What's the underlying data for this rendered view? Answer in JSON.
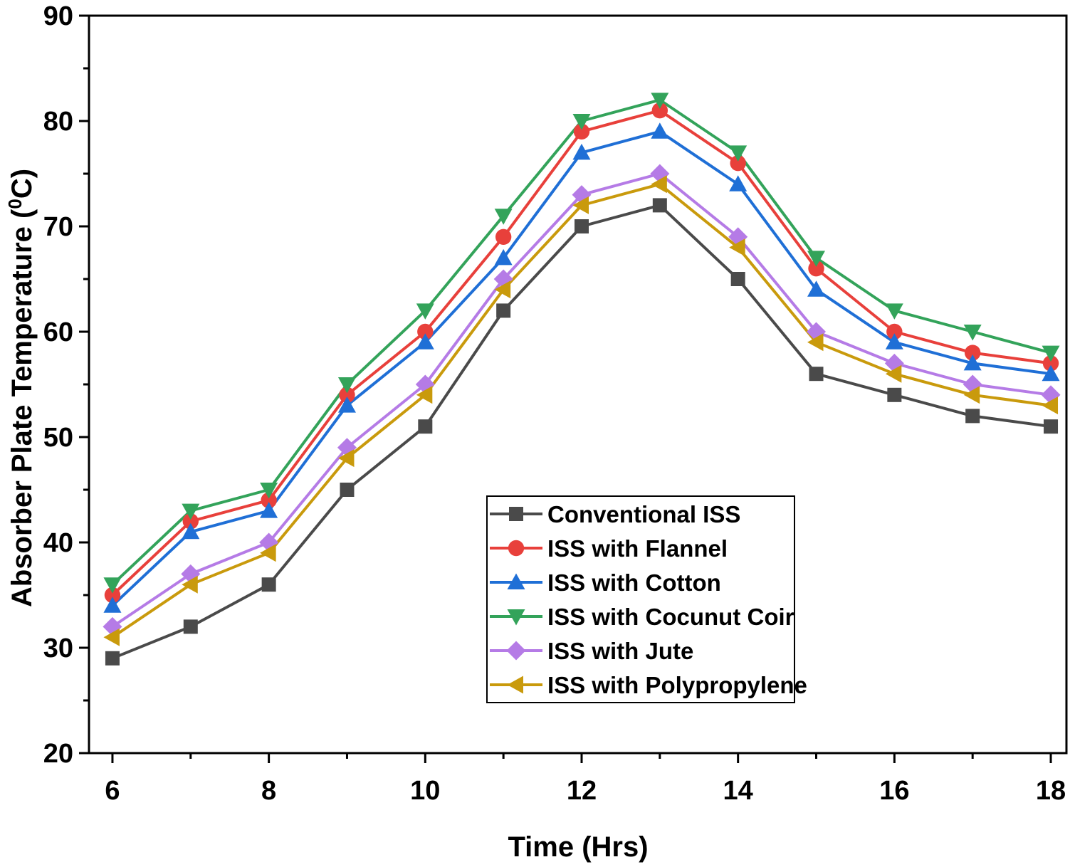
{
  "chart_data": {
    "type": "line",
    "title": "",
    "xlabel": "Time (Hrs)",
    "ylabel_main": "Absorber Plate Temperature (",
    "ylabel_sup": "0",
    "ylabel_unit": "C)",
    "xlim": [
      5.7,
      18.2
    ],
    "ylim": [
      20,
      90
    ],
    "xticks": [
      6,
      8,
      10,
      12,
      14,
      16,
      18
    ],
    "yticks": [
      20,
      30,
      40,
      50,
      60,
      70,
      80,
      90
    ],
    "x": [
      6,
      7,
      8,
      9,
      10,
      11,
      12,
      13,
      14,
      15,
      16,
      17,
      18
    ],
    "legend_position": "lower-center",
    "series": [
      {
        "name": "Conventional ISS",
        "color": "#4a4a4a",
        "marker": "square",
        "values": [
          29,
          32,
          36,
          45,
          51,
          62,
          70,
          72,
          65,
          56,
          54,
          52,
          51
        ]
      },
      {
        "name": "ISS with Flannel",
        "color": "#e8403b",
        "marker": "circle",
        "values": [
          35,
          42,
          44,
          54,
          60,
          69,
          79,
          81,
          76,
          66,
          60,
          58,
          57
        ]
      },
      {
        "name": "ISS with Cotton",
        "color": "#1f6fd6",
        "marker": "triangle-up",
        "values": [
          34,
          41,
          43,
          53,
          59,
          67,
          77,
          79,
          74,
          64,
          59,
          57,
          56
        ]
      },
      {
        "name": "ISS with Cocunut Coir",
        "color": "#33a35a",
        "marker": "triangle-down",
        "values": [
          36,
          43,
          45,
          55,
          62,
          71,
          80,
          82,
          77,
          67,
          62,
          60,
          58
        ]
      },
      {
        "name": "ISS with Jute",
        "color": "#b57be6",
        "marker": "diamond",
        "values": [
          32,
          37,
          40,
          49,
          55,
          65,
          73,
          75,
          69,
          60,
          57,
          55,
          54
        ]
      },
      {
        "name": "ISS with Polypropylene",
        "color": "#c99a0c",
        "marker": "triangle-left",
        "values": [
          31,
          36,
          39,
          48,
          54,
          64,
          72,
          74,
          68,
          59,
          56,
          54,
          53
        ]
      }
    ]
  }
}
